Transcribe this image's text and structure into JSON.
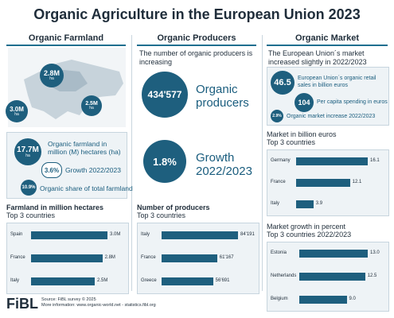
{
  "title": "Organic Agriculture in the European Union 2023",
  "columns": {
    "farmland": "Organic Farmland",
    "producers": "Organic Producers",
    "market": "Organic Market"
  },
  "map_labels": [
    "2.8M",
    "3.0M",
    "2.5M"
  ],
  "map_unit": "ha",
  "farmland_stats": {
    "area_value": "17.7M",
    "area_unit": "ha",
    "area_label": "Organic farmland in million (M) hectares (ha)",
    "growth_value": "3.6%",
    "growth_label": "Growth 2022/2023",
    "share_value": "10.9%",
    "share_label": "Organic share of total farmland"
  },
  "producers_stats": {
    "intro": "The number of organic producers is increasing",
    "count_value": "434'577",
    "count_label": "Organic producers",
    "growth_value": "1.8%",
    "growth_label": "Growth 2022/2023"
  },
  "market_stats": {
    "intro": "The European Union´s market increased slightly in 2022/2023",
    "retail_value": "46.5",
    "retail_label": "European Union´s organic retail sales in billion euros",
    "percap_value": "104",
    "percap_label": "Per capita spending in euros",
    "increase_value": "2.9%",
    "increase_label": "Organic market increase 2022/2023"
  },
  "chart_data": [
    {
      "type": "bar",
      "title": "Farmland in million hectares",
      "subtitle": "Top 3 countries",
      "categories": [
        "Spain",
        "France",
        "Italy"
      ],
      "values": [
        3.0,
        2.8,
        2.5
      ],
      "labels": [
        "3.0M",
        "2.8M",
        "2.5M"
      ]
    },
    {
      "type": "bar",
      "title": "Number of producers",
      "subtitle": "Top 3 countries",
      "categories": [
        "Italy",
        "France",
        "Greece"
      ],
      "values": [
        84191,
        61167,
        56691
      ],
      "labels": [
        "84'191",
        "61'167",
        "56'691"
      ]
    },
    {
      "type": "bar",
      "title": "Market in billion euros",
      "subtitle": "Top 3 countries",
      "categories": [
        "Germany",
        "France",
        "Italy"
      ],
      "values": [
        16.1,
        12.1,
        3.9
      ],
      "labels": [
        "16.1",
        "12.1",
        "3.9"
      ]
    },
    {
      "type": "bar",
      "title": "Market growth in percent",
      "subtitle": "Top 3 countries 2022/2023",
      "categories": [
        "Estonia",
        "Netherlands",
        "Belgium"
      ],
      "values": [
        13.0,
        12.5,
        9.0
      ],
      "labels": [
        "13.0",
        "12.5",
        "9.0"
      ]
    }
  ],
  "footer": {
    "logo": "FiBL",
    "source": "Source: FiBL survey © 2025",
    "more": "More information: www.organic-world.net - statistics.fibl.org"
  },
  "colors": {
    "accent": "#1e5f7e",
    "text": "#1f2d3a",
    "panel": "#eef3f6"
  }
}
